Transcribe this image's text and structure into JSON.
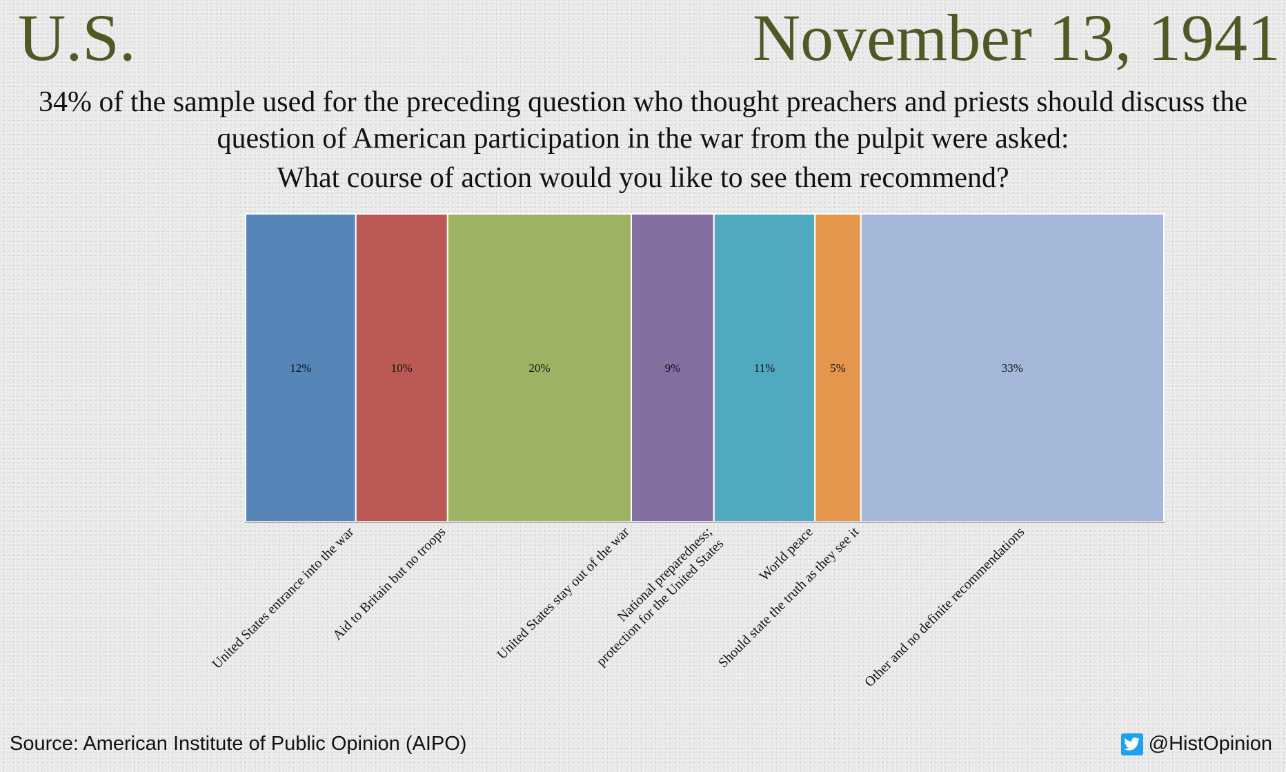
{
  "header": {
    "country": "U.S.",
    "date": "November 13, 1941"
  },
  "question": {
    "line1": "34% of the sample used for the preceding question who thought preachers and priests should discuss the question of American participation in the war from the pulpit were asked:",
    "line2": "What course of action would you like to see them recommend?"
  },
  "footer": {
    "source": "Source: American Institute of Public Opinion (AIPO)",
    "handle": "@HistOpinion",
    "icon": "twitter-bird-icon"
  },
  "chart_data": {
    "type": "bar",
    "variant": "variable-width (marimekko) columns, width proportional to value",
    "categories": [
      "United States entrance into the war",
      "Aid to Britain but no troops",
      "United States stay out of the war",
      "National preparedness;\nprotection for the United States",
      "World peace",
      "Should state the truth as they see it",
      "Other and no definite recommendations"
    ],
    "values": [
      12,
      10,
      20,
      9,
      11,
      5,
      33
    ],
    "data_labels": [
      "12%",
      "10%",
      "20%",
      "9%",
      "11%",
      "5%",
      "33%"
    ],
    "colors": [
      "#5686b8",
      "#bb5a54",
      "#9db363",
      "#856ea0",
      "#51a9c0",
      "#e3964c",
      "#a4b7d9"
    ],
    "grid": false,
    "legend": "none"
  }
}
